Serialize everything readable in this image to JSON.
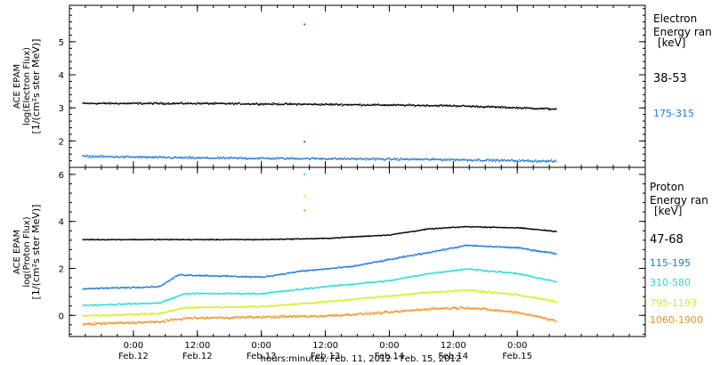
{
  "chart_data": [
    {
      "type": "scatter",
      "panel": "electron",
      "ylabel": [
        "ACE EPAM",
        "log(Electron Flux)",
        "[1/(cm²s ster MeV)]"
      ],
      "ylim": [
        1.2,
        6.1
      ],
      "yticks": [
        2,
        3,
        4,
        5
      ],
      "legend_title": [
        "Electron",
        "Energy ran",
        "[keV]"
      ],
      "series": [
        {
          "name": "38-53",
          "color": "#000000",
          "noise": 0.04,
          "points": [
            [
              -0.4,
              3.15
            ],
            [
              0.5,
              3.15
            ],
            [
              1.5,
              3.12
            ],
            [
              2.5,
              3.08
            ],
            [
              3.3,
              2.98
            ]
          ]
        },
        {
          "name": "175-315",
          "color": "#1e78d2",
          "noise": 0.05,
          "points": [
            [
              -0.4,
              1.55
            ],
            [
              0.5,
              1.5
            ],
            [
              1.5,
              1.48
            ],
            [
              2.5,
              1.45
            ],
            [
              3.3,
              1.4
            ]
          ]
        }
      ],
      "spikes": [
        {
          "x": 1.33,
          "y": 5.55,
          "color": "#1e78d2"
        },
        {
          "x": 1.33,
          "y": 2.0,
          "color": "#1e78d2"
        }
      ]
    },
    {
      "type": "scatter",
      "panel": "proton",
      "ylabel": [
        "ACE EPAM",
        "log(Proton Flux)",
        "[1/(cm²s ster MeV)]"
      ],
      "ylim": [
        -0.9,
        6.3
      ],
      "yticks": [
        0,
        2,
        4,
        6
      ],
      "legend_title": [
        "Proton",
        "Energy ran",
        "[keV]"
      ],
      "series": [
        {
          "name": "47-68",
          "color": "#000000",
          "noise": 0.03,
          "points": [
            [
              -0.4,
              3.25
            ],
            [
              0.5,
              3.25
            ],
            [
              1.0,
              3.25
            ],
            [
              1.5,
              3.3
            ],
            [
              2.0,
              3.45
            ],
            [
              2.3,
              3.7
            ],
            [
              2.6,
              3.8
            ],
            [
              3.0,
              3.75
            ],
            [
              3.3,
              3.6
            ]
          ]
        },
        {
          "name": "115-195",
          "color": "#1e78d2",
          "noise": 0.05,
          "points": [
            [
              -0.4,
              1.15
            ],
            [
              0.2,
              1.25
            ],
            [
              0.35,
              1.75
            ],
            [
              1.0,
              1.65
            ],
            [
              1.3,
              1.9
            ],
            [
              1.7,
              2.1
            ],
            [
              2.0,
              2.4
            ],
            [
              2.3,
              2.7
            ],
            [
              2.6,
              3.0
            ],
            [
              3.0,
              2.9
            ],
            [
              3.3,
              2.65
            ]
          ]
        },
        {
          "name": "310-580",
          "color": "#22dcd2",
          "noise": 0.05,
          "points": [
            [
              -0.4,
              0.45
            ],
            [
              0.2,
              0.55
            ],
            [
              0.4,
              0.95
            ],
            [
              1.0,
              0.95
            ],
            [
              1.5,
              1.25
            ],
            [
              2.0,
              1.5
            ],
            [
              2.3,
              1.8
            ],
            [
              2.6,
              2.0
            ],
            [
              3.0,
              1.8
            ],
            [
              3.3,
              1.45
            ]
          ]
        },
        {
          "name": "795-1193",
          "color": "#d2ee14",
          "noise": 0.06,
          "points": [
            [
              -0.4,
              0.0
            ],
            [
              0.2,
              0.1
            ],
            [
              0.4,
              0.35
            ],
            [
              1.0,
              0.4
            ],
            [
              1.5,
              0.6
            ],
            [
              2.0,
              0.85
            ],
            [
              2.3,
              1.0
            ],
            [
              2.6,
              1.1
            ],
            [
              3.0,
              0.9
            ],
            [
              3.3,
              0.6
            ]
          ]
        },
        {
          "name": "1060-1900",
          "color": "#f08c14",
          "noise": 0.08,
          "points": [
            [
              -0.4,
              -0.35
            ],
            [
              0.2,
              -0.25
            ],
            [
              0.4,
              -0.1
            ],
            [
              1.0,
              -0.05
            ],
            [
              1.5,
              0.0
            ],
            [
              2.0,
              0.15
            ],
            [
              2.3,
              0.3
            ],
            [
              2.6,
              0.35
            ],
            [
              3.0,
              0.15
            ],
            [
              3.3,
              -0.2
            ]
          ]
        }
      ],
      "spikes": [
        {
          "x": 1.33,
          "y": 6.05,
          "color": "#22dcd2"
        },
        {
          "x": 1.33,
          "y": 5.1,
          "color": "#d2ee14"
        },
        {
          "x": 1.33,
          "y": 4.5,
          "color": "#f08c14"
        }
      ]
    }
  ],
  "time_axis": {
    "xlim": [
      -0.5,
      4.0
    ],
    "ticks": [
      {
        "x": 0.0,
        "time": "0:00",
        "date": "Feb.12"
      },
      {
        "x": 0.5,
        "time": "12:00",
        "date": "Feb.12"
      },
      {
        "x": 1.0,
        "time": "0:00",
        "date": "Feb.13"
      },
      {
        "x": 1.5,
        "time": "12:00",
        "date": "Feb.13"
      },
      {
        "x": 2.0,
        "time": "0:00",
        "date": "Feb.14"
      },
      {
        "x": 2.5,
        "time": "12:00",
        "date": "Feb.14"
      },
      {
        "x": 3.0,
        "time": "0:00",
        "date": "Feb.15"
      }
    ],
    "xlabel": "hours:minutes, Feb. 11, 2012 - Feb. 15, 2012"
  }
}
